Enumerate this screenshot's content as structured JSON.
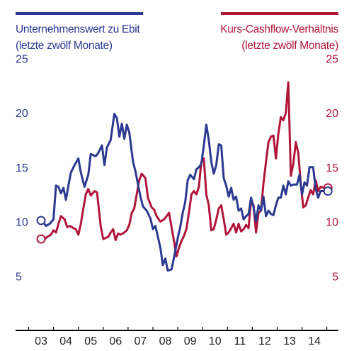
{
  "legend": {
    "left": {
      "line1": "Unternehmenswert zu Ebit",
      "line2": "(letzte zwölf Monate)"
    },
    "right": {
      "line1": "Kurs-Cashflow-Verhältnis",
      "line2": "(letzte zwölf Monate)"
    }
  },
  "colors": {
    "blue": "#2b3990",
    "red": "#b0163a",
    "axis": "#000000"
  },
  "chart_data": {
    "type": "line",
    "title": "",
    "xlabel": "",
    "ylabel": "",
    "x_tick_labels": [
      "03",
      "04",
      "05",
      "06",
      "07",
      "08",
      "09",
      "10",
      "11",
      "12",
      "13",
      "14"
    ],
    "y_tick_labels": [
      5,
      10,
      15,
      20,
      25
    ],
    "ylim": [
      0,
      26
    ],
    "xlim": [
      2002.65,
      2015.2
    ],
    "grid": false,
    "dual_axis": true,
    "legend_position": "top",
    "series": [
      {
        "name": "Unternehmenswert zu Ebit (letzte zwölf Monate)",
        "axis": "left",
        "color": "#2b3990",
        "start_marker": true,
        "end_marker": true,
        "points": [
          [
            2003.0,
            10.1
          ],
          [
            2003.1,
            9.9
          ],
          [
            2003.2,
            9.6
          ],
          [
            2003.35,
            9.8
          ],
          [
            2003.5,
            10.2
          ],
          [
            2003.6,
            13.3
          ],
          [
            2003.7,
            13.2
          ],
          [
            2003.8,
            12.6
          ],
          [
            2003.9,
            13.1
          ],
          [
            2004.0,
            12.0
          ],
          [
            2004.1,
            13.3
          ],
          [
            2004.2,
            14.5
          ],
          [
            2004.35,
            15.2
          ],
          [
            2004.5,
            15.8
          ],
          [
            2004.6,
            14.5
          ],
          [
            2004.75,
            13.2
          ],
          [
            2004.9,
            14.3
          ],
          [
            2005.0,
            16.2
          ],
          [
            2005.2,
            16.0
          ],
          [
            2005.3,
            16.3
          ],
          [
            2005.45,
            17.0
          ],
          [
            2005.55,
            15.2
          ],
          [
            2005.65,
            16.8
          ],
          [
            2005.8,
            17.5
          ],
          [
            2005.95,
            19.9
          ],
          [
            2006.05,
            19.5
          ],
          [
            2006.15,
            17.8
          ],
          [
            2006.25,
            19.0
          ],
          [
            2006.35,
            17.6
          ],
          [
            2006.45,
            18.9
          ],
          [
            2006.55,
            18.2
          ],
          [
            2006.7,
            15.5
          ],
          [
            2006.8,
            14.6
          ],
          [
            2006.9,
            13.4
          ],
          [
            2007.0,
            12.3
          ],
          [
            2007.1,
            11.4
          ],
          [
            2007.25,
            11.0
          ],
          [
            2007.4,
            10.3
          ],
          [
            2007.5,
            9.3
          ],
          [
            2007.6,
            9.6
          ],
          [
            2007.7,
            8.6
          ],
          [
            2007.8,
            7.6
          ],
          [
            2007.9,
            6.0
          ],
          [
            2008.0,
            6.6
          ],
          [
            2008.1,
            5.5
          ],
          [
            2008.25,
            5.6
          ],
          [
            2008.35,
            6.7
          ],
          [
            2008.5,
            8.5
          ],
          [
            2008.6,
            9.5
          ],
          [
            2008.7,
            10.8
          ],
          [
            2008.8,
            11.8
          ],
          [
            2008.9,
            13.8
          ],
          [
            2009.0,
            14.3
          ],
          [
            2009.15,
            13.9
          ],
          [
            2009.25,
            14.8
          ],
          [
            2009.35,
            15.0
          ],
          [
            2009.45,
            15.3
          ],
          [
            2009.55,
            17.0
          ],
          [
            2009.65,
            18.9
          ],
          [
            2009.75,
            17.5
          ],
          [
            2009.85,
            15.5
          ],
          [
            2009.95,
            14.4
          ],
          [
            2010.05,
            15.2
          ],
          [
            2010.15,
            17.1
          ],
          [
            2010.25,
            17.0
          ],
          [
            2010.35,
            14.0
          ],
          [
            2010.45,
            13.3
          ],
          [
            2010.55,
            12.3
          ],
          [
            2010.65,
            13.1
          ],
          [
            2010.75,
            12.0
          ],
          [
            2010.85,
            12.3
          ],
          [
            2010.95,
            11.0
          ],
          [
            2011.05,
            11.2
          ],
          [
            2011.15,
            10.2
          ],
          [
            2011.25,
            10.5
          ],
          [
            2011.35,
            10.7
          ],
          [
            2011.45,
            12.2
          ],
          [
            2011.55,
            11.3
          ],
          [
            2011.65,
            10.0
          ],
          [
            2011.75,
            11.5
          ],
          [
            2011.85,
            11.0
          ],
          [
            2011.95,
            12.3
          ],
          [
            2012.05,
            10.5
          ],
          [
            2012.15,
            11.0
          ],
          [
            2012.25,
            10.7
          ],
          [
            2012.35,
            10.6
          ],
          [
            2012.45,
            11.5
          ],
          [
            2012.55,
            12.2
          ],
          [
            2012.65,
            12.2
          ],
          [
            2012.75,
            13.3
          ],
          [
            2012.85,
            12.5
          ],
          [
            2012.95,
            13.7
          ],
          [
            2013.05,
            13.3
          ],
          [
            2013.15,
            13.4
          ],
          [
            2013.3,
            13.4
          ],
          [
            2013.4,
            14.3
          ],
          [
            2013.5,
            12.5
          ],
          [
            2013.6,
            13.6
          ],
          [
            2013.7,
            13.3
          ],
          [
            2013.8,
            15.0
          ],
          [
            2013.95,
            15.0
          ],
          [
            2014.05,
            13.0
          ],
          [
            2014.15,
            12.2
          ],
          [
            2014.25,
            12.8
          ],
          [
            2014.4,
            12.8
          ]
        ]
      },
      {
        "name": "Kurs-Cashflow-Verhältnis (letzte zwölf Monate)",
        "axis": "right",
        "color": "#b0163a",
        "start_marker": true,
        "end_marker": true,
        "points": [
          [
            2003.0,
            8.4
          ],
          [
            2003.1,
            8.3
          ],
          [
            2003.25,
            8.6
          ],
          [
            2003.4,
            8.8
          ],
          [
            2003.5,
            9.2
          ],
          [
            2003.6,
            9.0
          ],
          [
            2003.7,
            9.8
          ],
          [
            2003.8,
            10.5
          ],
          [
            2003.95,
            10.2
          ],
          [
            2004.05,
            9.5
          ],
          [
            2004.15,
            9.6
          ],
          [
            2004.3,
            9.4
          ],
          [
            2004.4,
            9.3
          ],
          [
            2004.5,
            8.8
          ],
          [
            2004.6,
            9.8
          ],
          [
            2004.7,
            11.2
          ],
          [
            2004.8,
            12.5
          ],
          [
            2004.9,
            13.0
          ],
          [
            2005.0,
            12.4
          ],
          [
            2005.15,
            12.8
          ],
          [
            2005.25,
            12.7
          ],
          [
            2005.4,
            9.6
          ],
          [
            2005.5,
            8.4
          ],
          [
            2005.6,
            8.5
          ],
          [
            2005.7,
            8.6
          ],
          [
            2005.8,
            9.0
          ],
          [
            2005.9,
            9.3
          ],
          [
            2006.0,
            8.3
          ],
          [
            2006.1,
            8.9
          ],
          [
            2006.2,
            8.8
          ],
          [
            2006.35,
            9.0
          ],
          [
            2006.45,
            9.2
          ],
          [
            2006.55,
            9.7
          ],
          [
            2006.65,
            10.8
          ],
          [
            2006.75,
            11.2
          ],
          [
            2006.85,
            12.5
          ],
          [
            2006.95,
            13.8
          ],
          [
            2007.05,
            14.4
          ],
          [
            2007.2,
            14.0
          ],
          [
            2007.3,
            12.2
          ],
          [
            2007.45,
            11.3
          ],
          [
            2007.55,
            11.1
          ],
          [
            2007.65,
            10.5
          ],
          [
            2007.8,
            10.0
          ],
          [
            2007.95,
            10.2
          ],
          [
            2008.05,
            10.5
          ],
          [
            2008.15,
            10.8
          ],
          [
            2008.25,
            9.5
          ],
          [
            2008.35,
            8.2
          ],
          [
            2008.45,
            6.8
          ],
          [
            2008.55,
            7.6
          ],
          [
            2008.65,
            8.2
          ],
          [
            2008.75,
            8.7
          ],
          [
            2008.85,
            9.3
          ],
          [
            2008.95,
            10.8
          ],
          [
            2009.05,
            12.5
          ],
          [
            2009.15,
            12.8
          ],
          [
            2009.25,
            12.5
          ],
          [
            2009.35,
            13.2
          ],
          [
            2009.45,
            15.5
          ],
          [
            2009.55,
            15.8
          ],
          [
            2009.65,
            12.5
          ],
          [
            2009.75,
            11.5
          ],
          [
            2009.85,
            9.2
          ],
          [
            2009.95,
            9.3
          ],
          [
            2010.05,
            10.2
          ],
          [
            2010.15,
            11.2
          ],
          [
            2010.25,
            11.5
          ],
          [
            2010.35,
            10.2
          ],
          [
            2010.45,
            8.8
          ],
          [
            2010.55,
            9.0
          ],
          [
            2010.65,
            9.4
          ],
          [
            2010.75,
            9.8
          ],
          [
            2010.85,
            9.0
          ],
          [
            2010.95,
            9.8
          ],
          [
            2011.05,
            9.1
          ],
          [
            2011.15,
            9.3
          ],
          [
            2011.25,
            9.7
          ],
          [
            2011.35,
            9.4
          ],
          [
            2011.45,
            12.0
          ],
          [
            2011.55,
            11.5
          ],
          [
            2011.65,
            9.0
          ],
          [
            2011.75,
            10.8
          ],
          [
            2011.85,
            11.0
          ],
          [
            2011.95,
            13.5
          ],
          [
            2012.05,
            15.5
          ],
          [
            2012.15,
            17.3
          ],
          [
            2012.25,
            17.8
          ],
          [
            2012.35,
            17.9
          ],
          [
            2012.45,
            15.8
          ],
          [
            2012.55,
            18.1
          ],
          [
            2012.65,
            19.6
          ],
          [
            2012.75,
            19.3
          ],
          [
            2012.85,
            20.0
          ],
          [
            2012.95,
            22.8
          ],
          [
            2013.05,
            14.2
          ],
          [
            2013.15,
            15.3
          ],
          [
            2013.25,
            17.3
          ],
          [
            2013.35,
            16.3
          ],
          [
            2013.45,
            13.5
          ],
          [
            2013.55,
            11.3
          ],
          [
            2013.65,
            11.5
          ],
          [
            2013.75,
            12.2
          ],
          [
            2013.85,
            12.9
          ],
          [
            2013.95,
            12.5
          ],
          [
            2014.05,
            13.8
          ],
          [
            2014.15,
            12.8
          ],
          [
            2014.25,
            13.2
          ],
          [
            2014.4,
            13.1
          ]
        ]
      }
    ]
  }
}
